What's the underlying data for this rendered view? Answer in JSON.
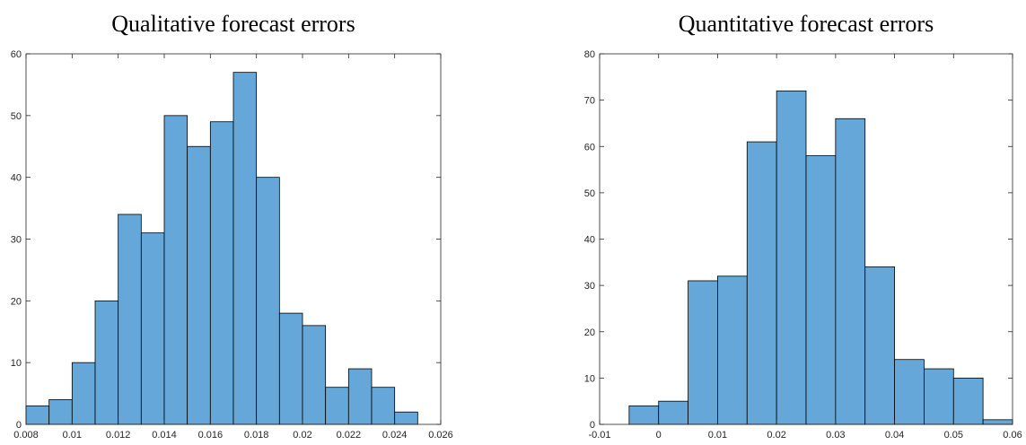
{
  "chart_data": [
    {
      "type": "histogram",
      "title": "Qualitative forecast errors",
      "color": "#65a7d8",
      "bins": [
        0.008,
        0.009,
        0.01,
        0.011,
        0.012,
        0.013,
        0.014,
        0.015,
        0.016,
        0.017,
        0.018,
        0.019,
        0.02,
        0.021,
        0.022,
        0.023,
        0.024,
        0.025
      ],
      "values": [
        3,
        4,
        10,
        20,
        34,
        31,
        50,
        45,
        49,
        57,
        40,
        18,
        16,
        6,
        9,
        6,
        2
      ],
      "xlim": [
        0.008,
        0.026
      ],
      "xticks": [
        0.008,
        0.01,
        0.012,
        0.014,
        0.016,
        0.018,
        0.02,
        0.022,
        0.024,
        0.026
      ],
      "ylim": [
        0,
        60
      ],
      "yticks": [
        0,
        10,
        20,
        30,
        40,
        50,
        60
      ]
    },
    {
      "type": "histogram",
      "title": "Quantitative forecast errors",
      "color": "#65a7d8",
      "bins": [
        -0.005,
        0,
        0.005,
        0.01,
        0.015,
        0.02,
        0.025,
        0.03,
        0.035,
        0.04,
        0.045,
        0.05,
        0.055,
        0.06
      ],
      "values": [
        4,
        5,
        31,
        32,
        61,
        72,
        58,
        66,
        34,
        14,
        12,
        10,
        1
      ],
      "xlim": [
        -0.01,
        0.06
      ],
      "xticks": [
        -0.01,
        0,
        0.01,
        0.02,
        0.03,
        0.04,
        0.05,
        0.06
      ],
      "ylim": [
        0,
        80
      ],
      "yticks": [
        0,
        10,
        20,
        30,
        40,
        50,
        60,
        70,
        80
      ]
    }
  ]
}
